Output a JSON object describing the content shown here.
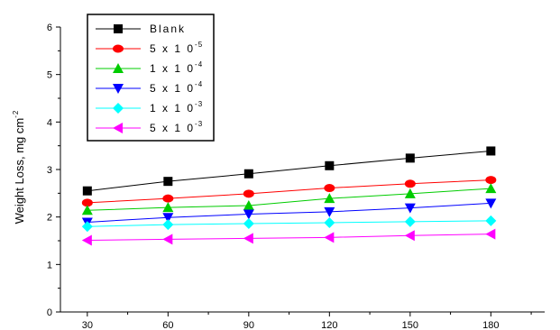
{
  "chart_data": {
    "type": "line",
    "x": [
      30,
      60,
      90,
      120,
      150,
      180
    ],
    "xlabel": "",
    "ylabel": "Weight Loss, mg cm",
    "ylabel_superscript": "-2",
    "xlim": [
      20,
      200
    ],
    "ylim": [
      0,
      6
    ],
    "yticks": [
      0,
      1,
      2,
      3,
      4,
      5,
      6
    ],
    "xticks": [
      30,
      60,
      90,
      120,
      150,
      180
    ],
    "grid": false,
    "legend_position": "top-left",
    "series": [
      {
        "name": "Blank",
        "name_base": "Blank",
        "name_exp": "",
        "color": "#000000",
        "marker": "square",
        "values": [
          2.55,
          2.75,
          2.91,
          3.08,
          3.24,
          3.39
        ]
      },
      {
        "name": "5x10-5",
        "name_base": "5 x 1 0",
        "name_exp": "-5",
        "color": "#ff0000",
        "marker": "circle",
        "values": [
          2.3,
          2.39,
          2.49,
          2.61,
          2.7,
          2.78
        ]
      },
      {
        "name": "1x10-4",
        "name_base": "1 x 1 0",
        "name_exp": "-4",
        "color": "#00cc00",
        "marker": "triangle-up",
        "values": [
          2.14,
          2.2,
          2.24,
          2.39,
          2.49,
          2.6
        ]
      },
      {
        "name": "5x10-4",
        "name_base": "5 x 1 0",
        "name_exp": "-4",
        "color": "#0000ff",
        "marker": "triangle-down",
        "values": [
          1.89,
          1.99,
          2.06,
          2.11,
          2.19,
          2.29
        ]
      },
      {
        "name": "1x10-3",
        "name_base": "1 x 1 0",
        "name_exp": "-3",
        "color": "#00ffff",
        "marker": "diamond",
        "values": [
          1.8,
          1.84,
          1.86,
          1.88,
          1.9,
          1.92
        ]
      },
      {
        "name": "5x10-3",
        "name_base": "5 x 1 0",
        "name_exp": "-3",
        "color": "#ff00ff",
        "marker": "triangle-left",
        "values": [
          1.51,
          1.53,
          1.55,
          1.57,
          1.61,
          1.64
        ]
      }
    ]
  }
}
